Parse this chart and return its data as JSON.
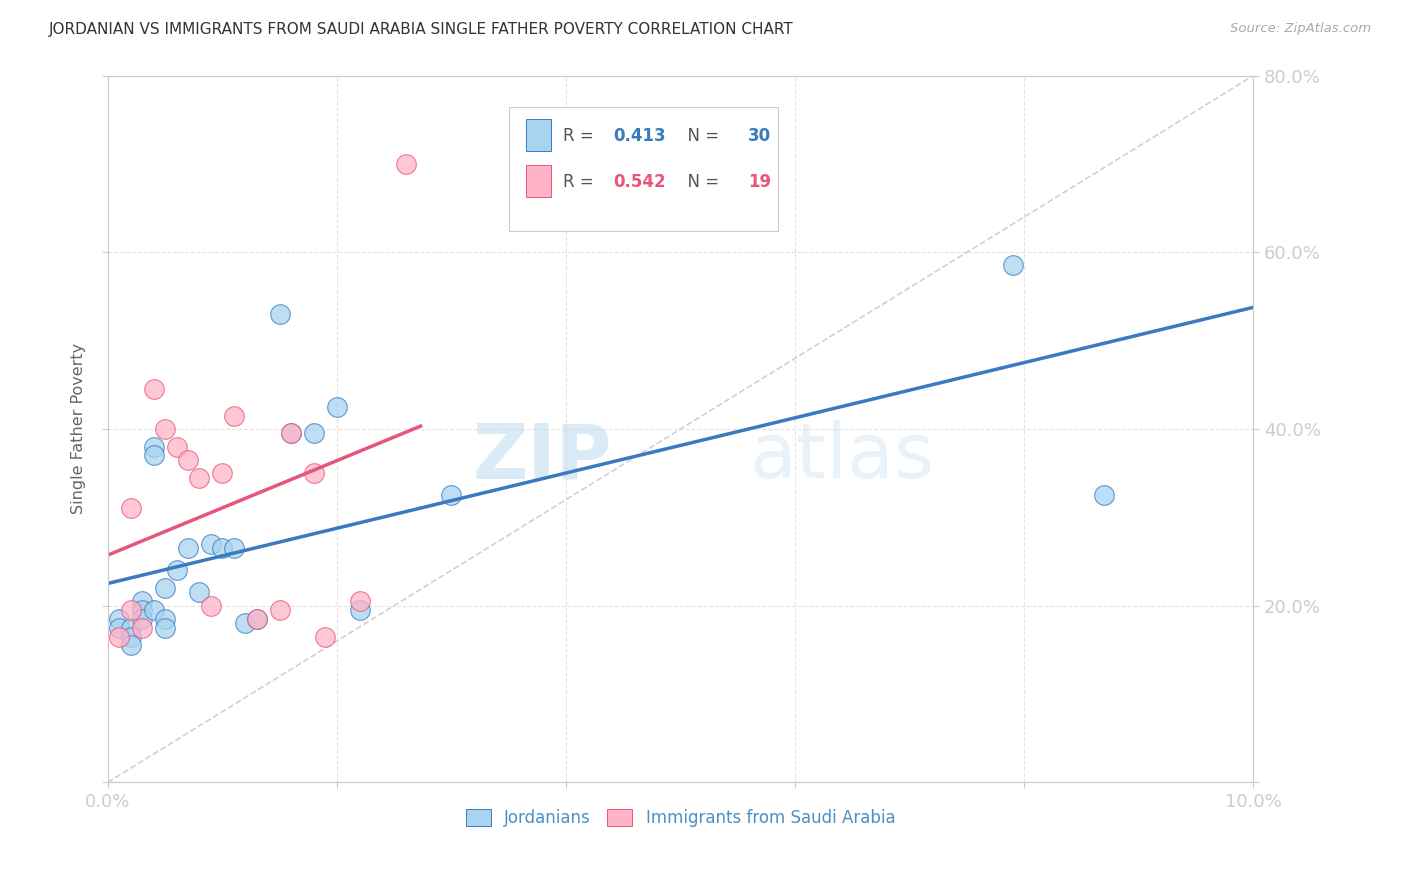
{
  "title": "JORDANIAN VS IMMIGRANTS FROM SAUDI ARABIA SINGLE FATHER POVERTY CORRELATION CHART",
  "source": "Source: ZipAtlas.com",
  "ylabel": "Single Father Poverty",
  "watermark_zip": "ZIP",
  "watermark_atlas": "atlas",
  "legend_label1": "Jordanians",
  "legend_label2": "Immigrants from Saudi Arabia",
  "r1": 0.413,
  "n1": 30,
  "r2": 0.542,
  "n2": 19,
  "xmin": 0.0,
  "xmax": 0.1,
  "ymin": 0.0,
  "ymax": 0.8,
  "xticks": [
    0.0,
    0.02,
    0.04,
    0.06,
    0.08,
    0.1
  ],
  "yticks": [
    0.0,
    0.2,
    0.4,
    0.6,
    0.8
  ],
  "color_blue": "#a8d4f0",
  "color_pink": "#ffb3c6",
  "color_line_blue": "#3a7abf",
  "color_line_pink": "#e8547a",
  "color_text_blue": "#4a90c4",
  "color_diag": "#d0c8d8",
  "jordanians_x": [
    0.001,
    0.001,
    0.002,
    0.002,
    0.002,
    0.003,
    0.003,
    0.003,
    0.004,
    0.004,
    0.004,
    0.005,
    0.005,
    0.005,
    0.006,
    0.007,
    0.008,
    0.009,
    0.01,
    0.011,
    0.012,
    0.013,
    0.015,
    0.016,
    0.018,
    0.02,
    0.022,
    0.03,
    0.079,
    0.087
  ],
  "jordanians_y": [
    0.185,
    0.175,
    0.175,
    0.165,
    0.155,
    0.205,
    0.195,
    0.185,
    0.195,
    0.38,
    0.37,
    0.185,
    0.175,
    0.22,
    0.24,
    0.265,
    0.215,
    0.27,
    0.265,
    0.265,
    0.18,
    0.185,
    0.53,
    0.395,
    0.395,
    0.425,
    0.195,
    0.325,
    0.585,
    0.325
  ],
  "saudi_x": [
    0.001,
    0.002,
    0.002,
    0.003,
    0.004,
    0.005,
    0.006,
    0.007,
    0.008,
    0.009,
    0.01,
    0.011,
    0.013,
    0.015,
    0.016,
    0.018,
    0.019,
    0.022,
    0.026
  ],
  "saudi_y": [
    0.165,
    0.195,
    0.31,
    0.175,
    0.445,
    0.4,
    0.38,
    0.365,
    0.345,
    0.2,
    0.35,
    0.415,
    0.185,
    0.195,
    0.395,
    0.35,
    0.165,
    0.205,
    0.7
  ]
}
